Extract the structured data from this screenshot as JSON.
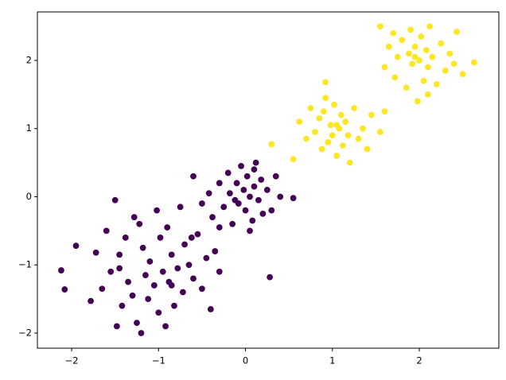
{
  "chart_data": {
    "type": "scatter",
    "xlim": [
      -2.394,
      2.915
    ],
    "ylim": [
      -2.222,
      2.711
    ],
    "xticks": [
      {
        "value": -2,
        "label": "−2"
      },
      {
        "value": -1,
        "label": "−1"
      },
      0,
      1,
      2
    ],
    "yticks": [
      {
        "value": -2,
        "label": "−2"
      },
      {
        "value": -1,
        "label": "−1"
      },
      0,
      1,
      2
    ],
    "grid": false,
    "series": [
      {
        "color": "#440154",
        "x": [
          -2.12,
          -2.08,
          -1.95,
          -1.78,
          -1.72,
          -1.65,
          -1.6,
          -1.55,
          -1.5,
          -1.48,
          -1.45,
          -1.42,
          -1.38,
          -1.35,
          -1.3,
          -1.28,
          -1.25,
          -1.2,
          -1.18,
          -1.15,
          -1.12,
          -1.1,
          -1.05,
          -1.02,
          -1.0,
          -0.98,
          -0.95,
          -0.92,
          -0.9,
          -0.88,
          -0.85,
          -0.82,
          -0.78,
          -0.75,
          -0.72,
          -0.7,
          -0.65,
          -0.6,
          -0.55,
          -0.5,
          -0.45,
          -0.4,
          -0.35,
          -0.3,
          -1.22,
          -1.45,
          -0.85,
          -0.62,
          -0.6,
          -0.5,
          -0.42,
          -0.38,
          -0.3,
          -0.25,
          -0.2,
          -0.18,
          -0.15,
          -0.1,
          -0.08,
          -0.05,
          -0.02,
          0,
          0.02,
          0.05,
          0.08,
          0.1,
          0.12,
          0.15,
          0.18,
          0.2,
          0.25,
          0.3,
          0.35,
          0.4,
          0.55,
          -0.12,
          0.05,
          0.1,
          -0.3,
          0.28
        ],
        "values": [
          -1.08,
          -1.36,
          -0.72,
          -1.53,
          -0.82,
          -1.35,
          -0.5,
          -1.1,
          -0.05,
          -1.9,
          -0.85,
          -1.6,
          -0.6,
          -1.25,
          -1.45,
          -0.3,
          -1.85,
          -2.0,
          -0.75,
          -1.15,
          -1.5,
          -0.95,
          -1.3,
          -0.2,
          -1.7,
          -0.6,
          -1.1,
          -1.9,
          -0.45,
          -1.25,
          -0.85,
          -1.6,
          -1.05,
          -0.15,
          -1.4,
          -0.7,
          -1.0,
          -1.2,
          -0.55,
          -1.35,
          -0.9,
          -1.65,
          -0.8,
          -1.1,
          -0.4,
          -1.05,
          -1.3,
          -0.6,
          0.3,
          -0.1,
          0.05,
          -0.3,
          0.2,
          -0.15,
          0.35,
          0.05,
          -0.4,
          0.2,
          -0.1,
          0.45,
          0.1,
          -0.2,
          0.3,
          0.0,
          -0.35,
          0.15,
          0.5,
          -0.05,
          0.25,
          -0.25,
          0.1,
          -0.2,
          0.3,
          0.0,
          -0.02,
          -0.05,
          -0.5,
          0.4,
          -0.45,
          -1.18
        ]
      },
      {
        "color": "#fde725",
        "x": [
          0.3,
          0.55,
          0.62,
          0.7,
          0.75,
          0.8,
          0.85,
          0.88,
          0.9,
          0.92,
          0.95,
          0.98,
          1.0,
          1.02,
          1.05,
          1.08,
          1.1,
          1.12,
          1.15,
          1.2,
          1.25,
          1.3,
          1.35,
          1.4,
          1.45,
          1.55,
          1.6,
          0.92,
          1.05,
          1.18,
          1.55,
          1.6,
          1.65,
          1.72,
          1.75,
          1.8,
          1.85,
          1.88,
          1.9,
          1.92,
          1.95,
          1.98,
          2.0,
          2.02,
          2.05,
          2.08,
          2.1,
          2.12,
          2.15,
          2.2,
          2.25,
          2.3,
          2.35,
          2.4,
          2.43,
          2.5,
          2.63,
          1.7,
          2.1,
          1.95
        ],
        "values": [
          0.77,
          0.55,
          1.1,
          0.85,
          1.3,
          0.95,
          1.15,
          0.7,
          1.25,
          1.68,
          0.8,
          1.05,
          0.9,
          1.35,
          0.6,
          1.0,
          1.2,
          0.75,
          1.1,
          0.5,
          1.3,
          0.85,
          1.0,
          0.7,
          1.2,
          0.95,
          1.25,
          1.45,
          1.05,
          0.9,
          2.5,
          1.9,
          2.2,
          1.75,
          2.05,
          2.3,
          1.6,
          2.1,
          2.45,
          1.95,
          2.2,
          1.4,
          2.0,
          2.35,
          1.7,
          2.15,
          1.9,
          2.5,
          2.05,
          1.65,
          2.25,
          1.85,
          2.1,
          1.95,
          2.42,
          1.8,
          1.97,
          2.4,
          1.5,
          2.05
        ]
      }
    ]
  }
}
